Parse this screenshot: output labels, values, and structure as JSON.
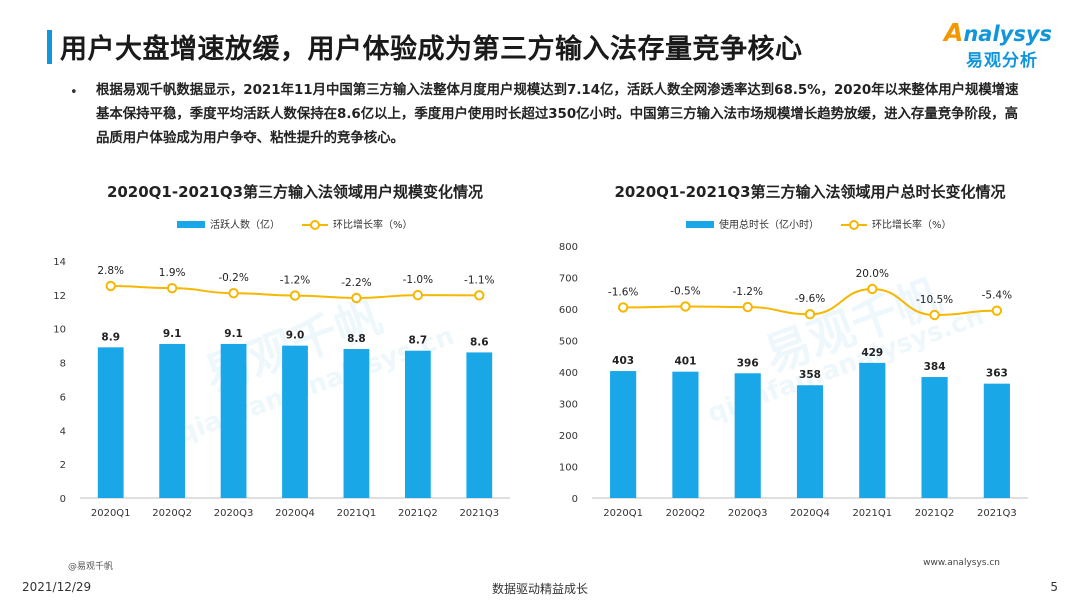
{
  "header": {
    "title": "用户大盘增速放缓，用户体验成为第三方输入法存量竞争核心",
    "logo_en_first": "A",
    "logo_en_rest": "nalysys",
    "logo_cn": "易观分析"
  },
  "summary": {
    "bullet": "•",
    "text": "根据易观千帆数据显示，2021年11月中国第三方输入法整体月度用户规模达到7.14亿，活跃人数全网渗透率达到68.5%，2020年以来整体用户规模增速基本保持平稳，季度平均活跃人数保持在8.6亿以上，季度用户使用时长超过350亿小时。中国第三方输入法市场规模增长趋势放缓，进入存量竞争阶段，高品质用户体验成为用户争夺、粘性提升的竞争核心。"
  },
  "watermark": {
    "cn": "易观千帆",
    "en": "qianfan.analysys.cn"
  },
  "chart_data": [
    {
      "type": "bar",
      "title": "2020Q1-2021Q3第三方输入法领域用户规模变化情况",
      "categories": [
        "2020Q1",
        "2020Q2",
        "2020Q3",
        "2020Q4",
        "2021Q1",
        "2021Q2",
        "2021Q3"
      ],
      "series": [
        {
          "name": "活跃人数（亿）",
          "type": "bar",
          "values": [
            8.9,
            9.1,
            9.1,
            9.0,
            8.8,
            8.7,
            8.6
          ],
          "labels": [
            "8.9",
            "9.1",
            "9.1",
            "9.0",
            "8.8",
            "8.7",
            "8.6"
          ]
        },
        {
          "name": "环比增长率（%）",
          "type": "line",
          "values": [
            2.8,
            1.9,
            -0.2,
            -1.2,
            -2.2,
            -1.0,
            -1.1
          ],
          "labels": [
            "2.8%",
            "1.9%",
            "-0.2%",
            "-1.2%",
            "-2.2%",
            "-1.0%",
            "-1.1%"
          ]
        }
      ],
      "ylim": [
        0,
        14
      ],
      "yticks": [
        "0",
        "2",
        "4",
        "6",
        "8",
        "10",
        "12",
        "14"
      ],
      "colors": {
        "bar": "#1aa7e8",
        "line": "#f5b700"
      }
    },
    {
      "type": "bar",
      "title": "2020Q1-2021Q3第三方输入法领域用户总时长变化情况",
      "categories": [
        "2020Q1",
        "2020Q2",
        "2020Q3",
        "2020Q4",
        "2021Q1",
        "2021Q2",
        "2021Q3"
      ],
      "series": [
        {
          "name": "使用总时长（亿小时）",
          "type": "bar",
          "values": [
            403,
            401,
            396,
            358,
            429,
            384,
            363
          ],
          "labels": [
            "403",
            "401",
            "396",
            "358",
            "429",
            "384",
            "363"
          ]
        },
        {
          "name": "环比增长率（%）",
          "type": "line",
          "values": [
            -1.6,
            -0.5,
            -1.2,
            -9.6,
            20.0,
            -10.5,
            -5.4
          ],
          "labels": [
            "-1.6%",
            "-0.5%",
            "-1.2%",
            "-9.6%",
            "20.0%",
            "-10.5%",
            "-5.4%"
          ]
        }
      ],
      "ylim": [
        0,
        800
      ],
      "yticks": [
        "0",
        "100",
        "200",
        "300",
        "400",
        "500",
        "600",
        "700",
        "800"
      ],
      "colors": {
        "bar": "#1aa7e8",
        "line": "#f5b700"
      }
    }
  ],
  "footer": {
    "source": "@易观千帆",
    "site": "www.analysys.cn",
    "date": "2021/12/29",
    "slogan": "数据驱动精益成长",
    "page": "5"
  }
}
